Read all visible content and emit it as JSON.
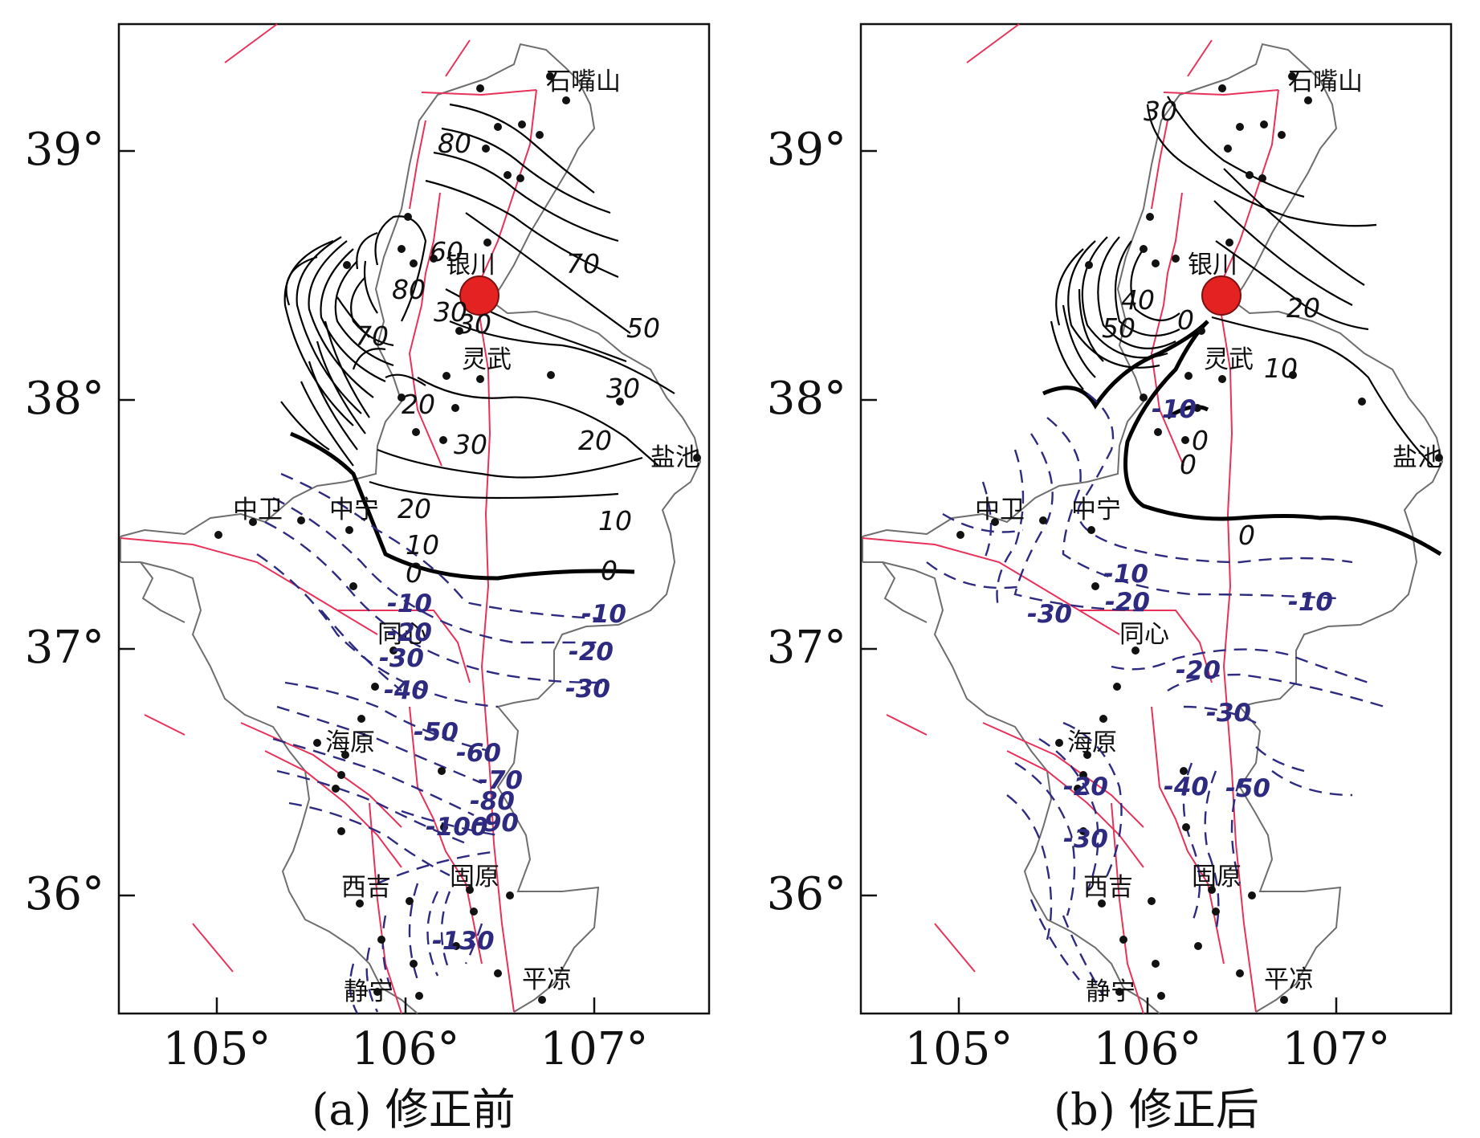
{
  "panels": [
    {
      "caption": "(a) 修正前",
      "lat_labels": [
        "39°",
        "38°",
        "37°",
        "36°"
      ],
      "lon_labels": [
        "105°",
        "106°",
        "107°"
      ],
      "places": [
        "石嘴山",
        "银川",
        "灵武",
        "盐池",
        "中卫",
        "中宁",
        "同心",
        "海原",
        "西吉",
        "固原",
        "静宁",
        "平凉"
      ],
      "positive_contour_labels": [
        "80",
        "80",
        "70",
        "70",
        "60",
        "50",
        "30",
        "30",
        "20",
        "30",
        "30",
        "20",
        "20",
        "10",
        "10",
        "0",
        "0"
      ],
      "negative_contour_labels": [
        "-10",
        "-20",
        "-30",
        "-40",
        "-10",
        "-20",
        "-30",
        "-50",
        "-60",
        "-70",
        "-80",
        "-90",
        "-100",
        "-130"
      ]
    },
    {
      "caption": "(b) 修正后",
      "lat_labels": [
        "39°",
        "38°",
        "37°",
        "36°"
      ],
      "lon_labels": [
        "105°",
        "106°",
        "107°"
      ],
      "places": [
        "石嘴山",
        "银川",
        "灵武",
        "盐池",
        "中卫",
        "中宁",
        "同心",
        "海原",
        "西吉",
        "固原",
        "静宁",
        "平凉"
      ],
      "positive_contour_labels": [
        "30",
        "40",
        "50",
        "0",
        "20",
        "10",
        "0",
        "0",
        "0"
      ],
      "negative_contour_labels": [
        "-10",
        "-10",
        "-20",
        "-30",
        "-10",
        "-20",
        "-30",
        "-40",
        "-50",
        "-20",
        "-30"
      ]
    }
  ],
  "colors": {
    "contour_positive": "#000000",
    "contour_negative": "#2e2a80",
    "fault": "#e8325a",
    "boundary": "#6e6e6e",
    "epicenter": "#e52222"
  },
  "icons": {
    "epicenter": "red-circle-marker",
    "station": "black-dot"
  }
}
